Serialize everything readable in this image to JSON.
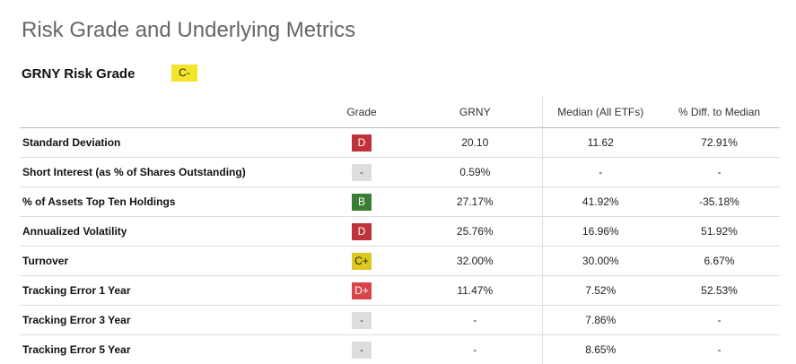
{
  "page": {
    "title": "Risk Grade and Underlying Metrics"
  },
  "risk_grade": {
    "label": "GRNY Risk Grade",
    "grade": "C-",
    "badge_bg": "#f5e52a",
    "badge_fg": "#222222"
  },
  "table": {
    "headers": {
      "metric": "",
      "grade": "Grade",
      "ticker": "GRNY",
      "median": "Median (All ETFs)",
      "diff": "% Diff. to Median"
    },
    "rows": [
      {
        "metric": "Standard Deviation",
        "grade": "D",
        "grade_bg": "#c0323b",
        "grade_fg": "#ffffff",
        "value": "20.10",
        "median": "11.62",
        "diff": "72.91%"
      },
      {
        "metric": "Short Interest (as % of Shares Outstanding)",
        "grade": "-",
        "grade_bg": "#dddddd",
        "grade_fg": "#444444",
        "value": "0.59%",
        "median": "-",
        "diff": "-"
      },
      {
        "metric": "% of Assets Top Ten Holdings",
        "grade": "B",
        "grade_bg": "#3a7d35",
        "grade_fg": "#ffffff",
        "value": "27.17%",
        "median": "41.92%",
        "diff": "-35.18%"
      },
      {
        "metric": "Annualized Volatility",
        "grade": "D",
        "grade_bg": "#c0323b",
        "grade_fg": "#ffffff",
        "value": "25.76%",
        "median": "16.96%",
        "diff": "51.92%"
      },
      {
        "metric": "Turnover",
        "grade": "C+",
        "grade_bg": "#dcc81e",
        "grade_fg": "#222222",
        "value": "32.00%",
        "median": "30.00%",
        "diff": "6.67%"
      },
      {
        "metric": "Tracking Error 1 Year",
        "grade": "D+",
        "grade_bg": "#d9454b",
        "grade_fg": "#ffffff",
        "value": "11.47%",
        "median": "7.52%",
        "diff": "52.53%"
      },
      {
        "metric": "Tracking Error 3 Year",
        "grade": "-",
        "grade_bg": "#dddddd",
        "grade_fg": "#444444",
        "value": "-",
        "median": "7.86%",
        "diff": "-"
      },
      {
        "metric": "Tracking Error 5 Year",
        "grade": "-",
        "grade_bg": "#dddddd",
        "grade_fg": "#444444",
        "value": "-",
        "median": "8.65%",
        "diff": "-"
      }
    ]
  }
}
